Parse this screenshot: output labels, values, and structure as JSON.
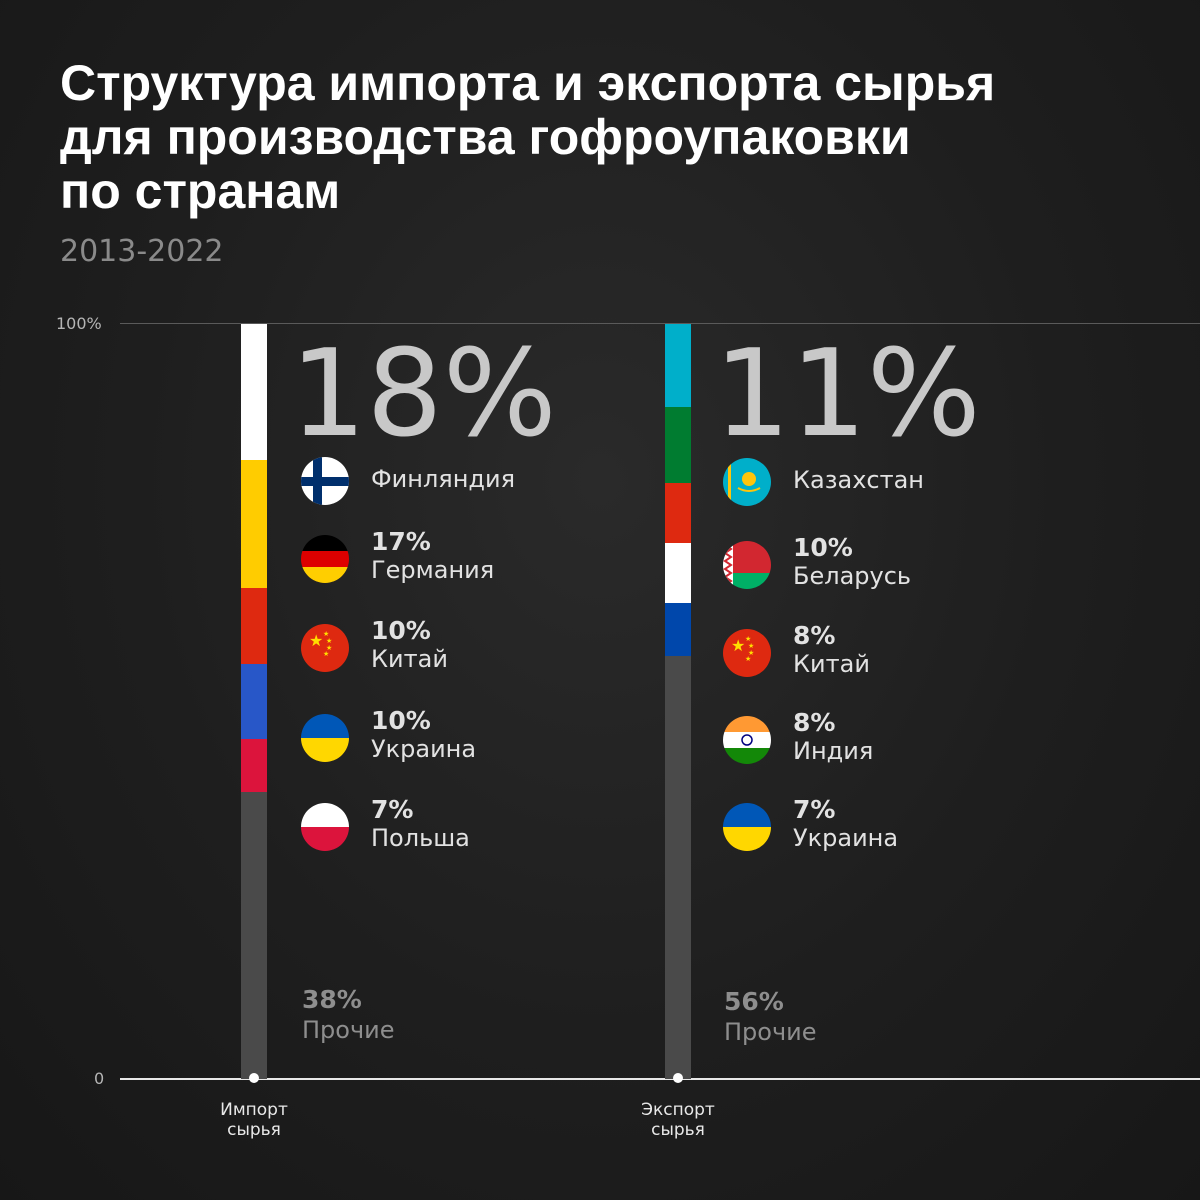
{
  "title": [
    "Структура импорта и экспорта сырья",
    "для производства гофроупаковки",
    "по странам"
  ],
  "subtitle": "2013-2022",
  "axis": {
    "top_label": "100%",
    "bottom_label": "0"
  },
  "colors": {
    "finland": "#ffffff",
    "germany": "#ffcc00",
    "china": "#de2910",
    "ukraine_blue": "#0057b7",
    "poland": "#dc143c",
    "others": "#4a4a4a",
    "kazakhstan": "#00afca",
    "belarus_green": "#007c30",
    "belarus_red": "#d22730",
    "india_white": "#ffffff",
    "india_blue": "#0047ab"
  },
  "chart_data": [
    {
      "type": "bar",
      "stacked": true,
      "category": "Импорт сырья",
      "category_lines": [
        "Импорт",
        "сырья"
      ],
      "ylim": [
        0,
        100
      ],
      "highlight": "18%",
      "segments": [
        {
          "label": "Финляндия",
          "pct": "18%",
          "value": 18,
          "color": "#ffffff",
          "flag": "finland-flag-icon"
        },
        {
          "label": "Германия",
          "pct": "17%",
          "value": 17,
          "color": "#ffcc00",
          "flag": "germany-flag-icon"
        },
        {
          "label": "Китай",
          "pct": "10%",
          "value": 10,
          "color": "#de2910",
          "flag": "china-flag-icon"
        },
        {
          "label": "Украина",
          "pct": "10%",
          "value": 10,
          "color": "#2857c8",
          "flag": "ukraine-flag-icon"
        },
        {
          "label": "Польша",
          "pct": "7%",
          "value": 7,
          "color": "#dc143c",
          "flag": "poland-flag-icon"
        },
        {
          "label": "Прочие",
          "pct": "38%",
          "value": 38,
          "color": "#4a4a4a"
        }
      ]
    },
    {
      "type": "bar",
      "stacked": true,
      "category": "Экспорт сырья",
      "category_lines": [
        "Экспорт",
        "сырья"
      ],
      "ylim": [
        0,
        100
      ],
      "highlight": "11%",
      "segments": [
        {
          "label": "Казахстан",
          "pct": "11%",
          "value": 11,
          "color": "#00afca",
          "flag": "kazakhstan-flag-icon"
        },
        {
          "label": "Беларусь",
          "pct": "10%",
          "value": 10,
          "color": "#007c30",
          "flag": "belarus-flag-icon"
        },
        {
          "label": "Китай",
          "pct": "8%",
          "value": 8,
          "color": "#de2910",
          "flag": "china-flag-icon"
        },
        {
          "label": "Индия",
          "pct": "8%",
          "value": 8,
          "color": "#ffffff",
          "flag": "india-flag-icon"
        },
        {
          "label": "Украина",
          "pct": "7%",
          "value": 7,
          "color": "#0047ab",
          "flag": "ukraine-flag-icon"
        },
        {
          "label": "Прочие",
          "pct": "56%",
          "value": 56,
          "color": "#4a4a4a"
        }
      ]
    }
  ]
}
